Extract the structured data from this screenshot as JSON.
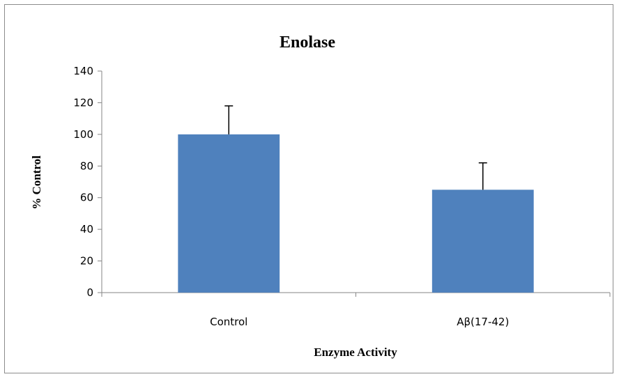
{
  "chart_data": {
    "type": "bar",
    "title": "Enolase",
    "xlabel": "Enzyme Activity",
    "ylabel": "% Control",
    "categories": [
      "Control",
      "Aβ(17-42)"
    ],
    "values": [
      100,
      65
    ],
    "error_bars": [
      18,
      17
    ],
    "ylim": [
      0,
      140
    ],
    "yticks": [
      0,
      20,
      40,
      60,
      80,
      100,
      120,
      140
    ],
    "grid": false,
    "legend": "none",
    "bar_color": "#4f81bd"
  }
}
